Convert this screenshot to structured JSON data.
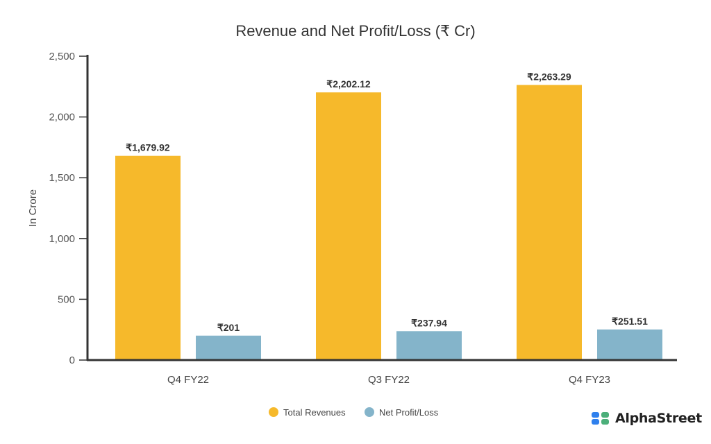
{
  "chart_data": {
    "type": "bar",
    "title": "Revenue and Net Profit/Loss (₹ Cr)",
    "xlabel": "",
    "ylabel": "In Crore",
    "ylim": [
      0,
      2500
    ],
    "yticks": [
      0,
      500,
      1000,
      1500,
      2000,
      2500
    ],
    "ytick_labels": [
      "0",
      "500",
      "1,000",
      "1,500",
      "2,000",
      "2,500"
    ],
    "categories": [
      "Q4 FY22",
      "Q3 FY22",
      "Q4 FY23"
    ],
    "series": [
      {
        "name": "Total Revenues",
        "color": "#F6B92B",
        "values": [
          1679.92,
          2202.12,
          2263.29
        ],
        "labels": [
          "₹1,679.92",
          "₹2,202.12",
          "₹2,263.29"
        ]
      },
      {
        "name": "Net Profit/Loss",
        "color": "#84B4CA",
        "values": [
          201,
          237.94,
          251.51
        ],
        "labels": [
          "₹201",
          "₹237.94",
          "₹251.51"
        ]
      }
    ],
    "grid": false,
    "legend": "bottom-center"
  },
  "brand": {
    "name": "AlphaStreet"
  }
}
